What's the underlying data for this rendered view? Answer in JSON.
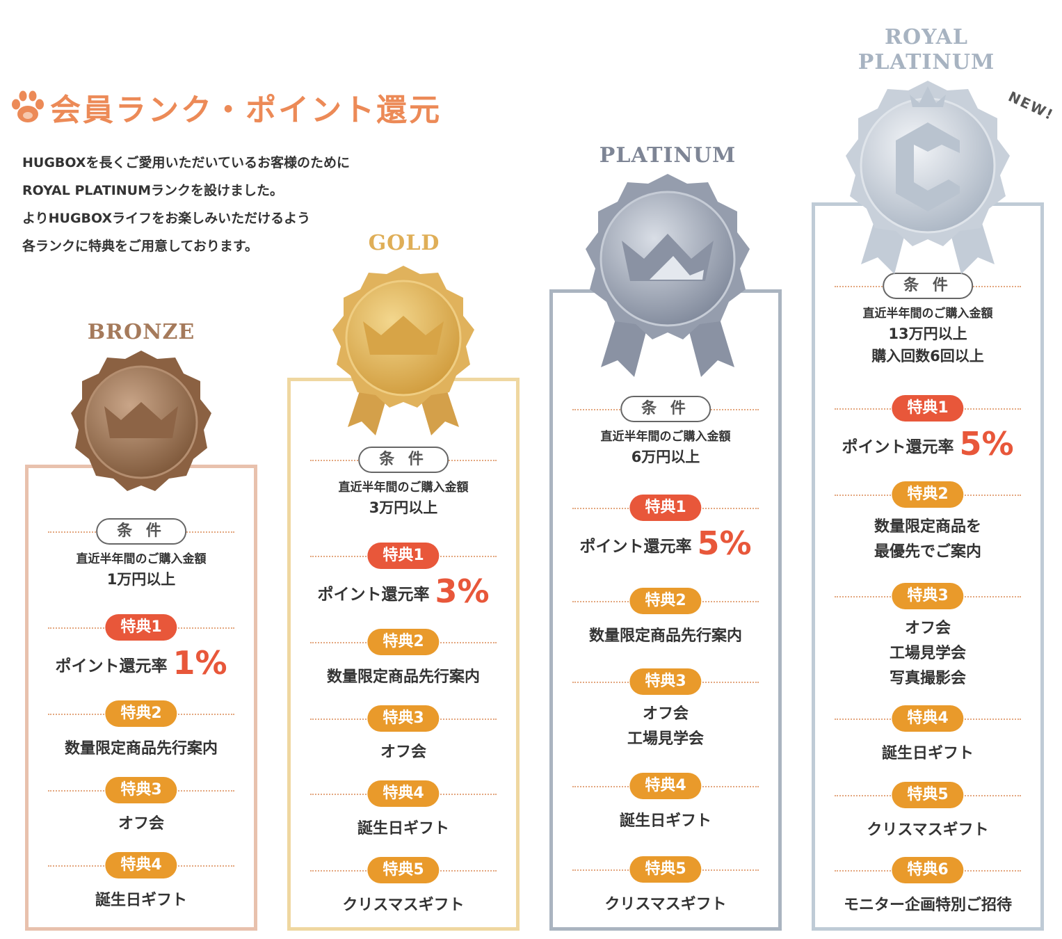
{
  "header": {
    "title": "会員ランク・ポイント還元",
    "intro_lines": [
      "HUGBOXを長くご愛用いただいているお客様のために",
      "ROYAL PLATINUMランクを設けました。",
      "よりHUGBOXライフをお楽しみいただけるよう",
      "各ランクに特典をご用意しております。"
    ]
  },
  "colors": {
    "accent_orange": "#ec8a57",
    "red_pill": "#e8573a",
    "orange_pill": "#e99a2b",
    "bronze": "#a57a5b",
    "gold": "#dfb452",
    "platinum": "#8f97a8",
    "royal": "#b9c4d0"
  },
  "tiers": {
    "bronze": {
      "name": "BRONZE",
      "condition_label": "条 件",
      "condition_line1": "直近半年間のご購入金額",
      "condition_line2": "1万円以上",
      "b1_label": "特典1",
      "rate_text": "ポイント還元率",
      "rate_value": "1%",
      "b2_label": "特典2",
      "b2_text": "数量限定商品先行案内",
      "b3_label": "特典3",
      "b3_text": "オフ会",
      "b4_label": "特典4",
      "b4_text": "誕生日ギフト"
    },
    "gold": {
      "name": "GOLD",
      "condition_label": "条 件",
      "condition_line1": "直近半年間のご購入金額",
      "condition_line2": "3万円以上",
      "b1_label": "特典1",
      "rate_text": "ポイント還元率",
      "rate_value": "3%",
      "b2_label": "特典2",
      "b2_text": "数量限定商品先行案内",
      "b3_label": "特典3",
      "b3_text": "オフ会",
      "b4_label": "特典4",
      "b4_text": "誕生日ギフト",
      "b5_label": "特典5",
      "b5_text": "クリスマスギフト"
    },
    "platinum": {
      "name": "PLATINUM",
      "condition_label": "条 件",
      "condition_line1": "直近半年間のご購入金額",
      "condition_line2": "6万円以上",
      "b1_label": "特典1",
      "rate_text": "ポイント還元率",
      "rate_value": "5%",
      "b2_label": "特典2",
      "b2_text": "数量限定商品先行案内",
      "b3_label": "特典3",
      "b3_line1": "オフ会",
      "b3_line2": "工場見学会",
      "b4_label": "特典4",
      "b4_text": "誕生日ギフト",
      "b5_label": "特典5",
      "b5_text": "クリスマスギフト"
    },
    "royal": {
      "name_line1": "ROYAL",
      "name_line2": "PLATINUM",
      "new_badge": "NEW!",
      "condition_label": "条 件",
      "condition_line1": "直近半年間のご購入金額",
      "condition_line2": "13万円以上",
      "condition_line3": "購入回数6回以上",
      "b1_label": "特典1",
      "rate_text": "ポイント還元率",
      "rate_value": "5%",
      "b2_label": "特典2",
      "b2_line1": "数量限定商品を",
      "b2_line2": "最優先でご案内",
      "b3_label": "特典3",
      "b3_line1": "オフ会",
      "b3_line2": "工場見学会",
      "b3_line3": "写真撮影会",
      "b4_label": "特典4",
      "b4_text": "誕生日ギフト",
      "b5_label": "特典5",
      "b5_text": "クリスマスギフト",
      "b6_label": "特典6",
      "b6_text": "モニター企画特別ご招待"
    }
  }
}
